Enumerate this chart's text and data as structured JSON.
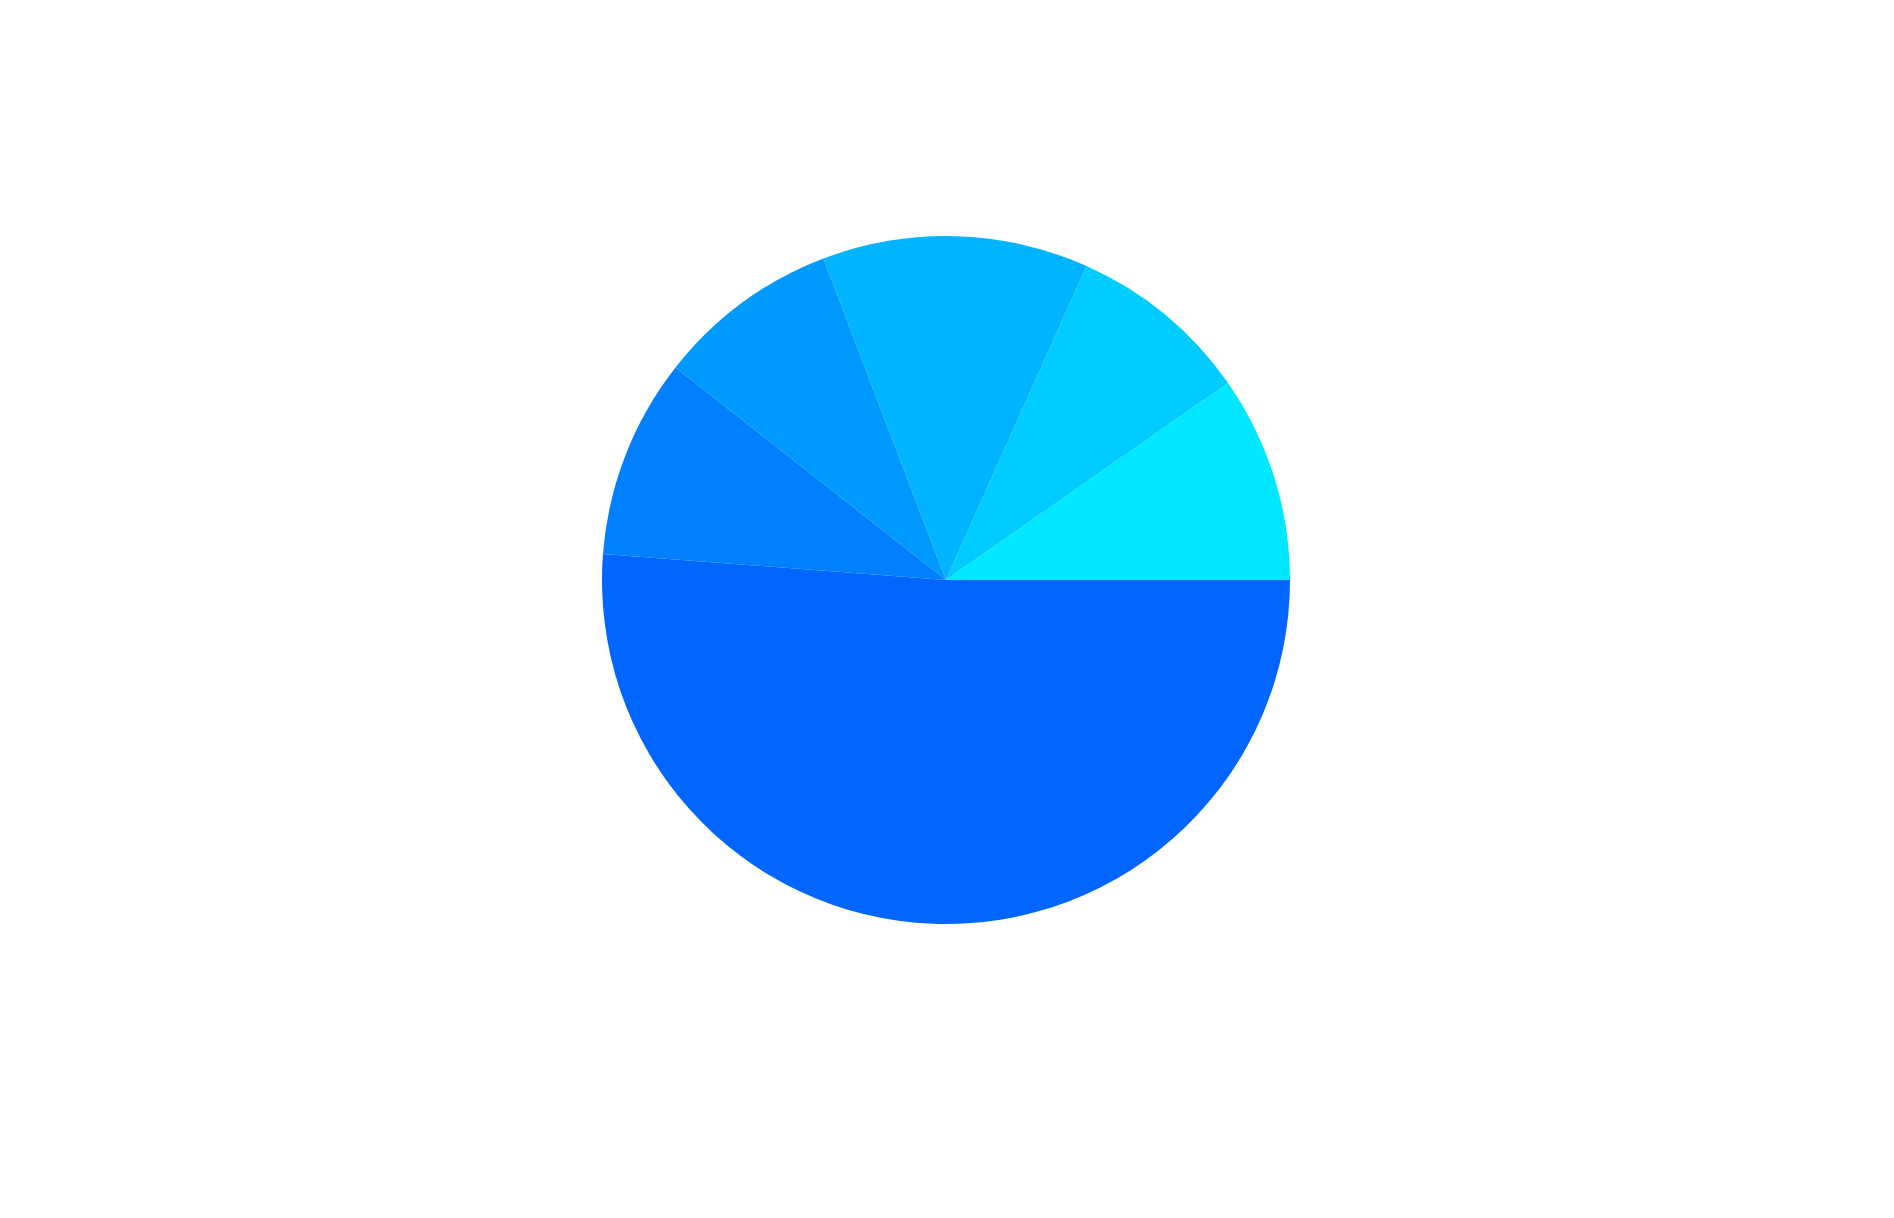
{
  "chart_data": {
    "type": "pie",
    "categories": [
      null,
      null,
      null,
      null,
      null,
      null
    ],
    "values": [
      9.7,
      8.6,
      12.5,
      8.6,
      9.4,
      51.2
    ],
    "colors": [
      "#00e8ff",
      "#00ccff",
      "#00b4ff",
      "#0099ff",
      "#0080ff",
      "#0066ff"
    ],
    "legend": false
  }
}
